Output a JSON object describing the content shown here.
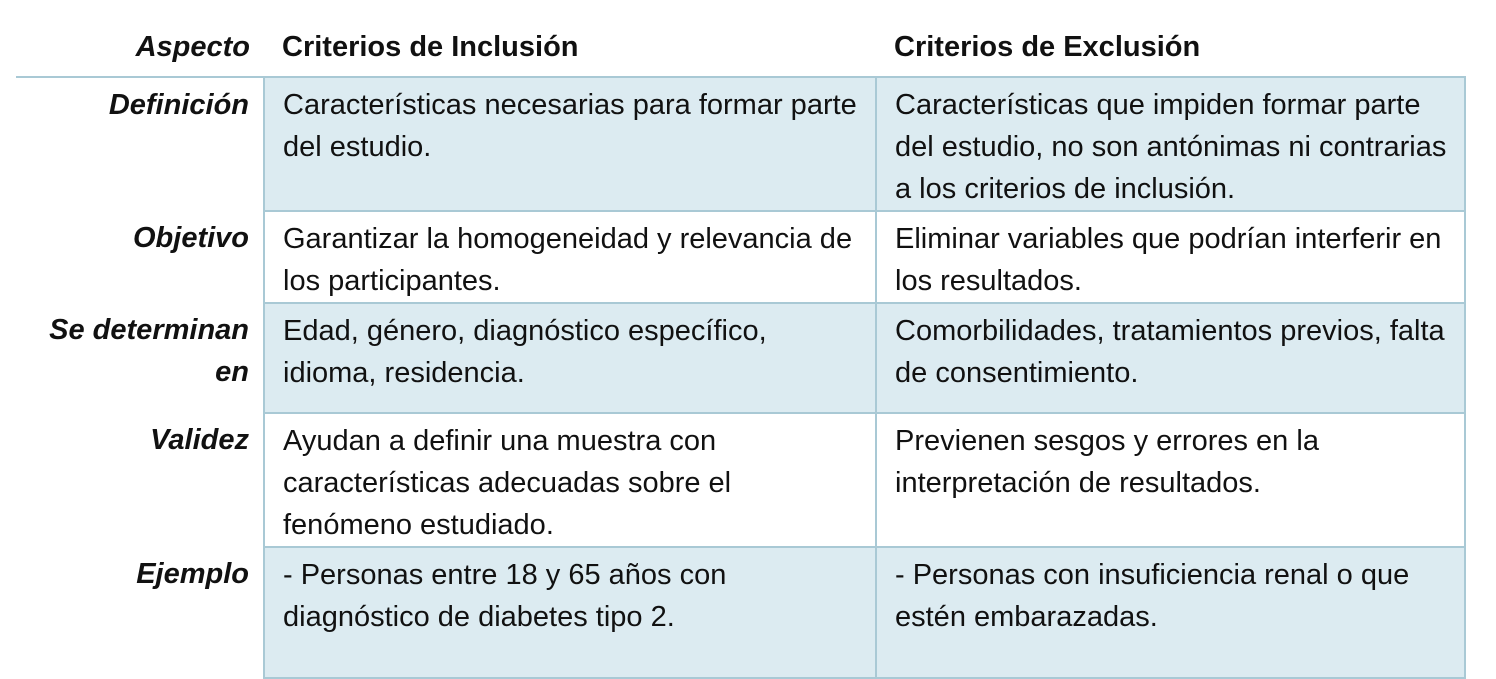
{
  "headers": {
    "aspect": "Aspecto",
    "inclusion": "Criterios de Inclusión",
    "exclusion": "Criterios de Exclusión"
  },
  "rows": [
    {
      "aspect": "Definición",
      "inclusion": "Características necesarias para formar parte del estudio.",
      "exclusion": "Características que impiden formar parte del estudio, no son antónimas ni contrarias a los criterios de inclusión."
    },
    {
      "aspect": "Objetivo",
      "inclusion": "Garantizar la homogeneidad y relevancia de los participantes.",
      "exclusion": "Eliminar variables que podrían interferir en los resultados."
    },
    {
      "aspect": "Se determinan en",
      "inclusion": "Edad, género, diagnóstico específico, idioma, residencia.",
      "exclusion": "Comorbilidades, tratamientos previos, falta de consentimiento."
    },
    {
      "aspect": "Validez",
      "inclusion": "Ayudan a definir una muestra con características adecuadas sobre el fenómeno estudiado.",
      "exclusion": "Previenen sesgos y errores en la interpretación de resultados."
    },
    {
      "aspect": "Ejemplo",
      "inclusion": "- Personas entre 18 y 65 años con diagnóstico de diabetes tipo 2.",
      "exclusion": "- Personas con insuficiencia renal o que estén embarazadas."
    }
  ],
  "colors": {
    "shaded_row": "#dcebf1",
    "border": "#a9c9d5"
  }
}
